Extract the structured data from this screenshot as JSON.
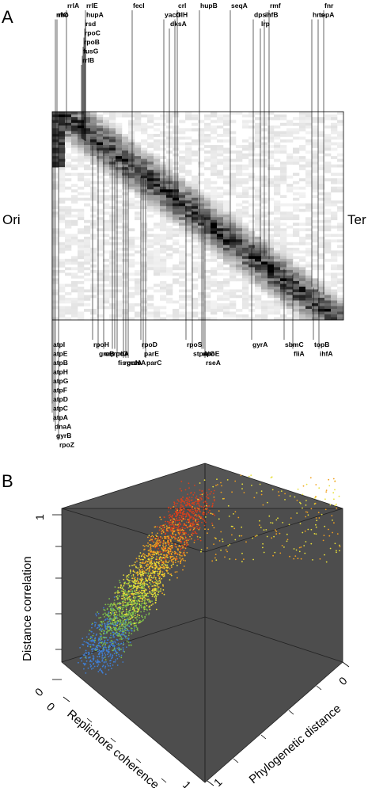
{
  "panel_a": {
    "letter": "A",
    "left_label": "Ori",
    "right_label": "Ter",
    "top_genes": [
      {
        "name": "rrlE",
        "gx": 108
      },
      {
        "name": "hupA",
        "gx": 108
      },
      {
        "name": "rsd",
        "gx": 107
      },
      {
        "name": "rpoC",
        "gx": 106
      },
      {
        "name": "rpoB",
        "gx": 105
      },
      {
        "name": "fusG",
        "gx": 104
      },
      {
        "name": "rrlB",
        "gx": 103
      },
      {
        "name": "rrlA",
        "gx": 84
      },
      {
        "name": "rho",
        "gx": 72
      },
      {
        "name": "rrlC",
        "gx": 70
      },
      {
        "name": "fecI",
        "gx": 167
      },
      {
        "name": "crl",
        "gx": 224
      },
      {
        "name": "rrlH",
        "gx": 221
      },
      {
        "name": "dksA",
        "gx": 214
      },
      {
        "name": "yacG",
        "gx": 207
      },
      {
        "name": "hupB",
        "gx": 252
      },
      {
        "name": "seqA",
        "gx": 291
      },
      {
        "name": "rmf",
        "gx": 340
      },
      {
        "name": "ihfB",
        "gx": 334
      },
      {
        "name": "lrp",
        "gx": 329
      },
      {
        "name": "dps",
        "gx": 320
      },
      {
        "name": "fnr",
        "gx": 409
      },
      {
        "name": "topA",
        "gx": 402
      },
      {
        "name": "hns",
        "gx": 394
      }
    ],
    "bottom_genes": [
      {
        "name": "atpI",
        "gx": 66
      },
      {
        "name": "atpE",
        "gx": 66
      },
      {
        "name": "atpB",
        "gx": 66
      },
      {
        "name": "atpH",
        "gx": 66
      },
      {
        "name": "atpG",
        "gx": 66
      },
      {
        "name": "atpF",
        "gx": 66
      },
      {
        "name": "atpD",
        "gx": 66
      },
      {
        "name": "atpC",
        "gx": 66
      },
      {
        "name": "atpA",
        "gx": 66
      },
      {
        "name": "dnaA",
        "gx": 68
      },
      {
        "name": "gyrB",
        "gx": 70
      },
      {
        "name": "rpoZ",
        "gx": 74
      },
      {
        "name": "rpoH",
        "gx": 117
      },
      {
        "name": "greB",
        "gx": 124
      },
      {
        "name": "crp",
        "gx": 131
      },
      {
        "name": "rpoA",
        "gx": 142
      },
      {
        "name": "rrlD",
        "gx": 145
      },
      {
        "name": "fis",
        "gx": 148
      },
      {
        "name": "rpoN",
        "gx": 156
      },
      {
        "name": "greA",
        "gx": 159
      },
      {
        "name": "nusA",
        "gx": 162
      },
      {
        "name": "rpoD",
        "gx": 178
      },
      {
        "name": "parE",
        "gx": 181
      },
      {
        "name": "parC",
        "gx": 184
      },
      {
        "name": "rpoS",
        "gx": 235
      },
      {
        "name": "stpA",
        "gx": 243
      },
      {
        "name": "rrlG",
        "gx": 255
      },
      {
        "name": "rpoE",
        "gx": 257
      },
      {
        "name": "rseA",
        "gx": 259
      },
      {
        "name": "gyrA",
        "gx": 318
      },
      {
        "name": "sbmC",
        "gx": 359
      },
      {
        "name": "fliA",
        "gx": 370
      },
      {
        "name": "topB",
        "gx": 396
      },
      {
        "name": "ihfA",
        "gx": 403
      }
    ]
  },
  "panel_b": {
    "letter": "B",
    "axis_z_label": "Distance correlation",
    "axis_x_label": "Replichore coherence",
    "axis_y_label": "Phylogenetic distance",
    "tick_z_1": "1",
    "tick_z_0": "0",
    "tick_x_0": "0",
    "tick_x_1": "1",
    "tick_y_0": "0",
    "tick_y_1": "1",
    "colors": {
      "panel_bg": "#4d4d4d",
      "low": "#3f7fd6",
      "mid_low": "#7ec14a",
      "mid": "#e8e03a",
      "high": "#f0a020",
      "top": "#d8401c"
    }
  }
}
